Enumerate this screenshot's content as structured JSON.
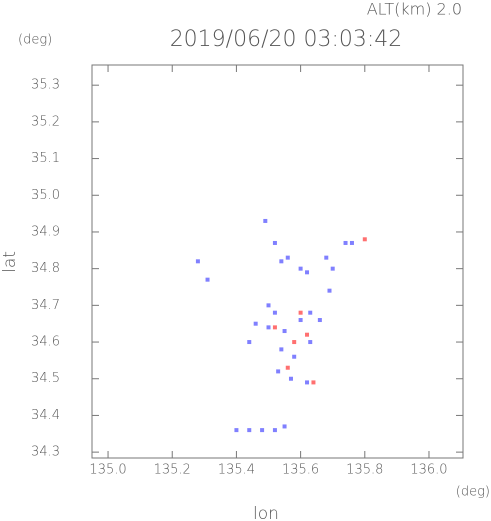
{
  "chart_data": {
    "type": "scatter",
    "title": "2019/06/20 03:03:42",
    "annotation": "ALT(km) 2.0",
    "y_unit": "(deg)",
    "x_unit": "(deg)",
    "x_label": "lon",
    "y_label": "lat",
    "xlim": [
      134.95,
      136.106
    ],
    "ylim": [
      34.284,
      35.355
    ],
    "xticks": [
      {
        "value": 135.0,
        "label": "135.0"
      },
      135.2,
      135.4,
      135.6,
      135.8,
      {
        "value": 136.0,
        "label": "136.0"
      }
    ],
    "yticks": [
      34.3,
      34.4,
      34.5,
      34.6,
      34.7,
      34.8,
      34.9,
      {
        "value": 35.0,
        "label": "35.0"
      },
      35.1,
      35.2,
      35.3
    ],
    "series": [
      {
        "color": "#8080ff",
        "x": [
          135.28,
          135.31,
          135.49,
          135.52,
          135.54,
          135.56,
          135.6,
          135.62,
          135.68,
          135.7,
          135.69,
          135.74,
          135.76,
          135.5,
          135.52,
          135.46,
          135.5,
          135.55,
          135.6,
          135.63,
          135.66,
          135.44,
          135.54,
          135.58,
          135.63,
          135.53,
          135.57,
          135.62,
          135.4,
          135.44,
          135.48,
          135.52,
          135.55
        ],
        "values": [
          34.82,
          34.77,
          34.93,
          34.87,
          34.82,
          34.83,
          34.8,
          34.79,
          34.83,
          34.8,
          34.74,
          34.87,
          34.87,
          34.7,
          34.68,
          34.65,
          34.64,
          34.63,
          34.66,
          34.68,
          34.66,
          34.6,
          34.58,
          34.56,
          34.6,
          34.52,
          34.5,
          34.49,
          34.36,
          34.36,
          34.36,
          34.36,
          34.37
        ]
      },
      {
        "color": "#ff7070",
        "x": [
          135.8,
          135.62,
          135.58,
          135.56,
          135.64,
          135.52,
          135.6
        ],
        "values": [
          34.88,
          34.62,
          34.6,
          34.53,
          34.49,
          34.64,
          34.68
        ]
      }
    ]
  }
}
